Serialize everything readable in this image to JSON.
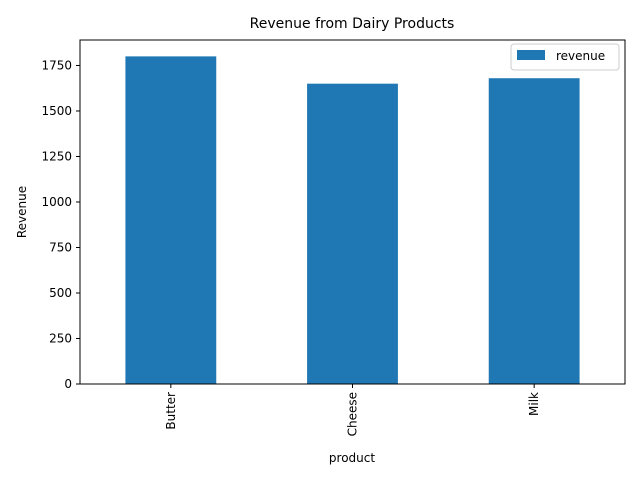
{
  "chart_data": {
    "type": "bar",
    "title": "Revenue from Dairy Products",
    "xlabel": "product",
    "ylabel": "Revenue",
    "categories": [
      "Butter",
      "Cheese",
      "Milk"
    ],
    "series": [
      {
        "name": "revenue",
        "values": [
          1800,
          1650,
          1680
        ],
        "color": "#1f77b4"
      }
    ],
    "ylim": [
      0,
      1890
    ],
    "yticks": [
      0,
      250,
      500,
      750,
      1000,
      1250,
      1500,
      1750
    ],
    "x_tick_rotation": "vertical",
    "legend_position": "top-right",
    "grid": false
  }
}
